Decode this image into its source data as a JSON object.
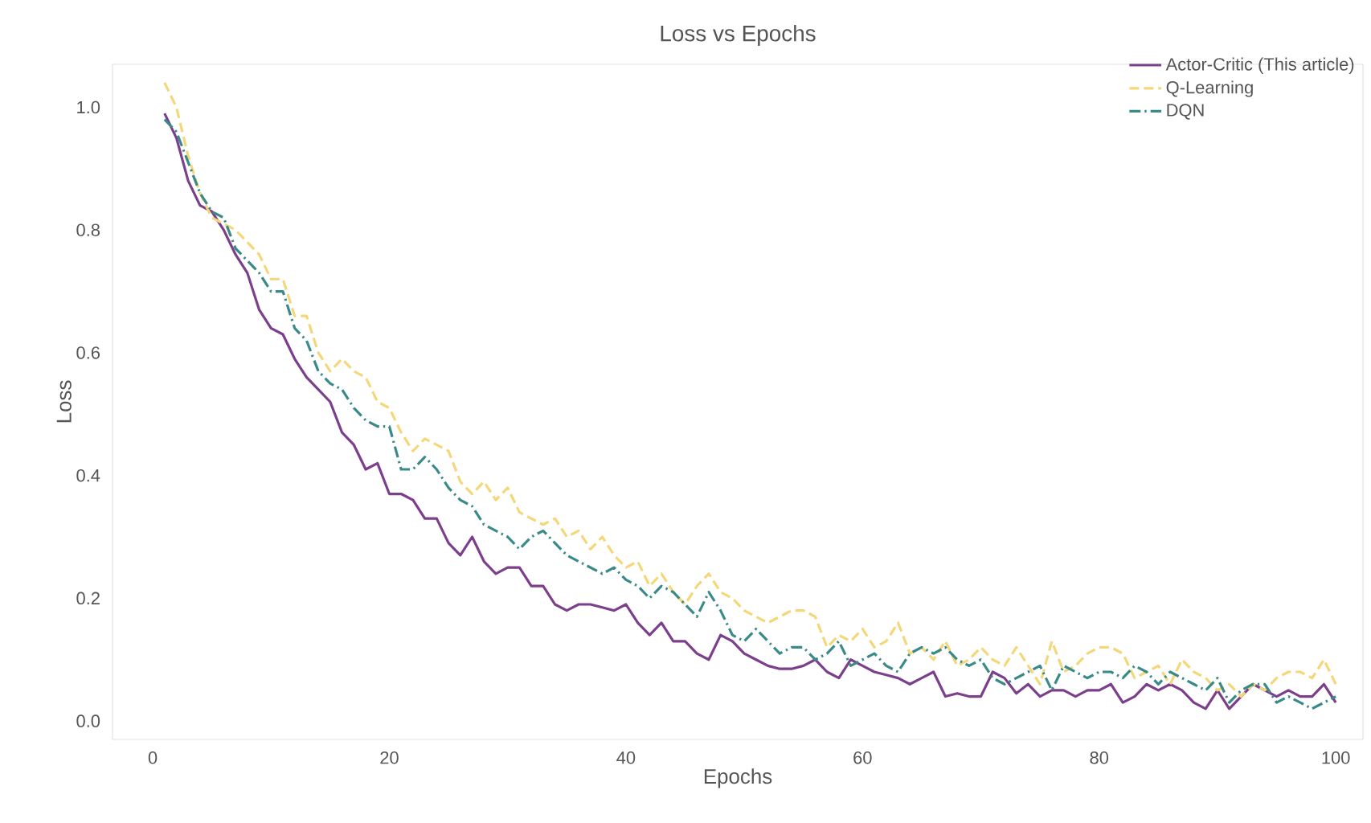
{
  "chart_data": {
    "type": "line",
    "title": "Loss vs Epochs",
    "xlabel": "Epochs",
    "ylabel": "Loss",
    "x": [
      1,
      2,
      3,
      4,
      5,
      6,
      7,
      8,
      9,
      10,
      11,
      12,
      13,
      14,
      15,
      16,
      17,
      18,
      19,
      20,
      21,
      22,
      23,
      24,
      25,
      26,
      27,
      28,
      29,
      30,
      31,
      32,
      33,
      34,
      35,
      36,
      37,
      38,
      39,
      40,
      41,
      42,
      43,
      44,
      45,
      46,
      47,
      48,
      49,
      50,
      51,
      52,
      53,
      54,
      55,
      56,
      57,
      58,
      59,
      60,
      61,
      62,
      63,
      64,
      65,
      66,
      67,
      68,
      69,
      70,
      71,
      72,
      73,
      74,
      75,
      76,
      77,
      78,
      79,
      80,
      81,
      82,
      83,
      84,
      85,
      86,
      87,
      88,
      89,
      90,
      91,
      92,
      93,
      94,
      95,
      96,
      97,
      98,
      99,
      100
    ],
    "series": [
      {
        "name": "Actor-Critic (This article)",
        "color": "#7b3f8c",
        "line_style": "solid",
        "values": [
          0.99,
          0.95,
          0.88,
          0.84,
          0.83,
          0.8,
          0.76,
          0.73,
          0.67,
          0.64,
          0.63,
          0.59,
          0.56,
          0.54,
          0.52,
          0.47,
          0.45,
          0.41,
          0.42,
          0.37,
          0.37,
          0.36,
          0.33,
          0.33,
          0.29,
          0.27,
          0.3,
          0.26,
          0.24,
          0.25,
          0.25,
          0.22,
          0.22,
          0.19,
          0.18,
          0.19,
          0.19,
          0.185,
          0.18,
          0.19,
          0.16,
          0.14,
          0.16,
          0.13,
          0.13,
          0.11,
          0.1,
          0.14,
          0.13,
          0.11,
          0.1,
          0.09,
          0.085,
          0.085,
          0.09,
          0.1,
          0.08,
          0.07,
          0.1,
          0.09,
          0.08,
          0.075,
          0.07,
          0.06,
          0.07,
          0.08,
          0.04,
          0.045,
          0.04,
          0.04,
          0.08,
          0.07,
          0.045,
          0.06,
          0.04,
          0.05,
          0.05,
          0.04,
          0.05,
          0.05,
          0.06,
          0.03,
          0.04,
          0.06,
          0.05,
          0.06,
          0.05,
          0.03,
          0.02,
          0.05,
          0.02,
          0.04,
          0.06,
          0.05,
          0.04,
          0.05,
          0.04,
          0.04,
          0.06,
          0.03
        ]
      },
      {
        "name": "Q-Learning",
        "color": "#f5d77b",
        "line_style": "dashed",
        "values": [
          1.04,
          1.0,
          0.92,
          0.86,
          0.82,
          0.81,
          0.8,
          0.78,
          0.76,
          0.72,
          0.72,
          0.66,
          0.66,
          0.6,
          0.57,
          0.59,
          0.57,
          0.56,
          0.52,
          0.51,
          0.47,
          0.44,
          0.46,
          0.45,
          0.44,
          0.39,
          0.37,
          0.39,
          0.36,
          0.38,
          0.34,
          0.33,
          0.32,
          0.33,
          0.3,
          0.31,
          0.28,
          0.3,
          0.27,
          0.25,
          0.26,
          0.22,
          0.24,
          0.21,
          0.19,
          0.22,
          0.24,
          0.21,
          0.2,
          0.18,
          0.17,
          0.16,
          0.17,
          0.18,
          0.18,
          0.17,
          0.12,
          0.14,
          0.13,
          0.15,
          0.12,
          0.13,
          0.16,
          0.11,
          0.12,
          0.1,
          0.13,
          0.09,
          0.1,
          0.12,
          0.1,
          0.09,
          0.12,
          0.09,
          0.06,
          0.13,
          0.08,
          0.09,
          0.11,
          0.12,
          0.12,
          0.11,
          0.07,
          0.08,
          0.09,
          0.06,
          0.1,
          0.08,
          0.07,
          0.05,
          0.06,
          0.04,
          0.06,
          0.05,
          0.07,
          0.08,
          0.08,
          0.07,
          0.1,
          0.06
        ]
      },
      {
        "name": "DQN",
        "color": "#3a8a8a",
        "line_style": "dashdot",
        "values": [
          0.98,
          0.96,
          0.91,
          0.86,
          0.83,
          0.82,
          0.77,
          0.75,
          0.73,
          0.7,
          0.7,
          0.64,
          0.62,
          0.57,
          0.55,
          0.54,
          0.51,
          0.49,
          0.48,
          0.48,
          0.41,
          0.41,
          0.43,
          0.41,
          0.38,
          0.36,
          0.35,
          0.32,
          0.31,
          0.3,
          0.28,
          0.3,
          0.31,
          0.29,
          0.27,
          0.26,
          0.25,
          0.24,
          0.25,
          0.23,
          0.22,
          0.2,
          0.22,
          0.21,
          0.19,
          0.17,
          0.21,
          0.18,
          0.14,
          0.13,
          0.15,
          0.13,
          0.11,
          0.12,
          0.12,
          0.1,
          0.11,
          0.13,
          0.09,
          0.1,
          0.11,
          0.09,
          0.08,
          0.11,
          0.12,
          0.11,
          0.12,
          0.1,
          0.09,
          0.1,
          0.07,
          0.06,
          0.07,
          0.08,
          0.09,
          0.05,
          0.09,
          0.08,
          0.07,
          0.08,
          0.08,
          0.07,
          0.09,
          0.08,
          0.06,
          0.08,
          0.07,
          0.06,
          0.05,
          0.07,
          0.03,
          0.05,
          0.06,
          0.06,
          0.03,
          0.04,
          0.03,
          0.02,
          0.03,
          0.04
        ]
      }
    ],
    "xlim": [
      -3.4,
      102.3
    ],
    "ylim": [
      -0.03,
      1.07
    ],
    "xticks": [
      0,
      20,
      40,
      60,
      80,
      100
    ],
    "yticks": [
      {
        "value": 0,
        "label": "0.0"
      },
      {
        "value": 0.2,
        "label": "0.2"
      },
      {
        "value": 0.4,
        "label": "0.4"
      },
      {
        "value": 0.6,
        "label": "0.6"
      },
      {
        "value": 0.8,
        "label": "0.8"
      },
      {
        "value": 1.0,
        "label": "1.0"
      }
    ],
    "legend": "top right",
    "grid": false
  }
}
